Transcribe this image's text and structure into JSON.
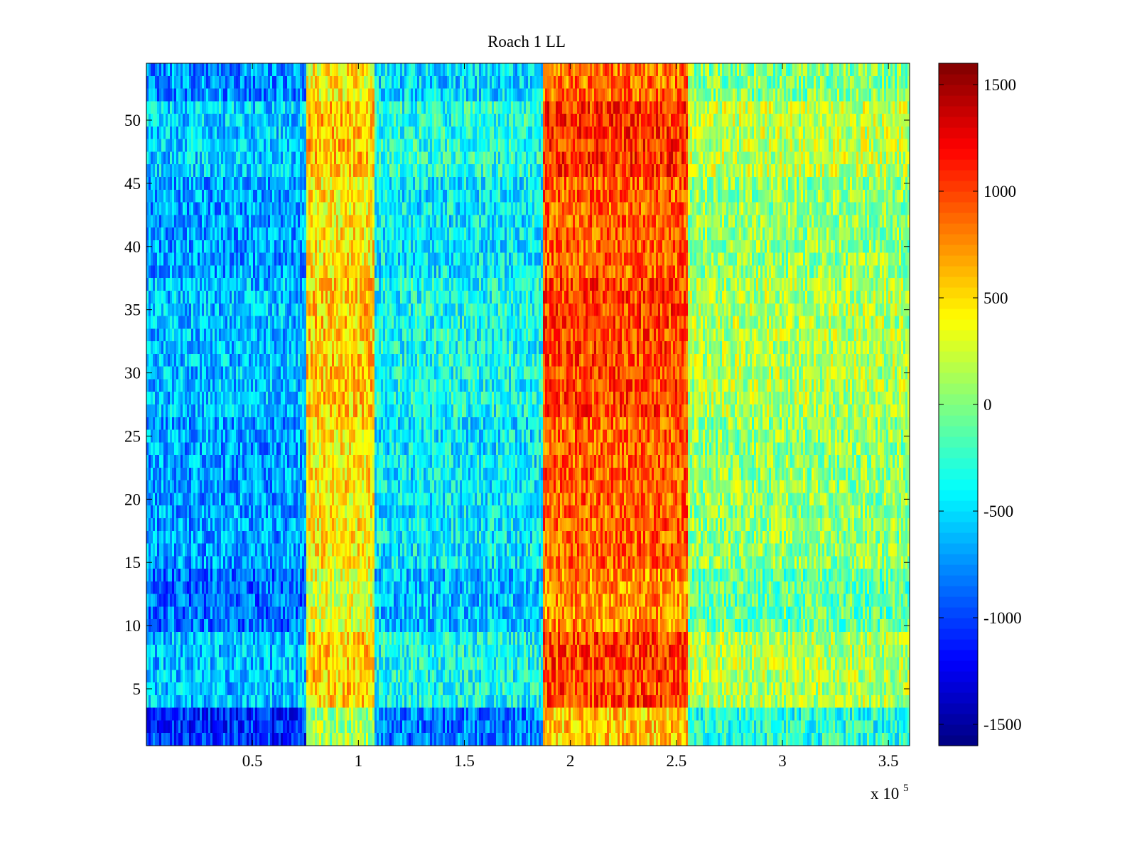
{
  "chart_data": {
    "type": "heatmap",
    "title": "Roach 1 LL",
    "xlabel": "",
    "ylabel": "",
    "x_multiplier_label": "x 10",
    "x_multiplier_exponent": "5",
    "xlim": [
      0,
      360000
    ],
    "ylim": [
      0.5,
      54.5
    ],
    "rows": 54,
    "colormap": "jet",
    "x_ticks": [
      {
        "value": 50000,
        "label": "0.5"
      },
      {
        "value": 100000,
        "label": "1"
      },
      {
        "value": 150000,
        "label": "1.5"
      },
      {
        "value": 200000,
        "label": "2"
      },
      {
        "value": 250000,
        "label": "2.5"
      },
      {
        "value": 300000,
        "label": "3"
      },
      {
        "value": 350000,
        "label": "3.5"
      }
    ],
    "y_ticks": [
      {
        "value": 5,
        "label": "5"
      },
      {
        "value": 10,
        "label": "10"
      },
      {
        "value": 15,
        "label": "15"
      },
      {
        "value": 20,
        "label": "20"
      },
      {
        "value": 25,
        "label": "25"
      },
      {
        "value": 30,
        "label": "30"
      },
      {
        "value": 35,
        "label": "35"
      },
      {
        "value": 40,
        "label": "40"
      },
      {
        "value": 45,
        "label": "45"
      },
      {
        "value": 50,
        "label": "50"
      }
    ],
    "colorbar": {
      "clim": [
        -1600,
        1600
      ],
      "ticks": [
        {
          "value": 1500,
          "label": "1500"
        },
        {
          "value": 1000,
          "label": "1000"
        },
        {
          "value": 500,
          "label": "500"
        },
        {
          "value": 0,
          "label": "0"
        },
        {
          "value": -500,
          "label": "-500"
        },
        {
          "value": -1000,
          "label": "-1000"
        },
        {
          "value": -1500,
          "label": "-1500"
        }
      ]
    },
    "x_segments": [
      {
        "x_start": 0,
        "x_end": 75000,
        "mean_value": -700
      },
      {
        "x_start": 75000,
        "x_end": 108000,
        "mean_value": 450
      },
      {
        "x_start": 108000,
        "x_end": 187000,
        "mean_value": -450
      },
      {
        "x_start": 187000,
        "x_end": 255000,
        "mean_value": 900
      },
      {
        "x_start": 255000,
        "x_end": 360000,
        "mean_value": 50
      }
    ],
    "row_offsets": [
      {
        "rows": [
          1,
          3
        ],
        "offset": -350
      },
      {
        "rows": [
          4,
          9
        ],
        "offset": 100
      },
      {
        "rows": [
          10,
          14
        ],
        "offset": -150
      },
      {
        "rows": [
          15,
          26
        ],
        "offset": 0
      },
      {
        "rows": [
          27,
          37
        ],
        "offset": 100
      },
      {
        "rows": [
          38,
          45
        ],
        "offset": 0
      },
      {
        "rows": [
          46,
          51
        ],
        "offset": 150
      },
      {
        "rows": [
          52,
          54
        ],
        "offset": -50
      }
    ],
    "noise_amplitude": 350
  }
}
